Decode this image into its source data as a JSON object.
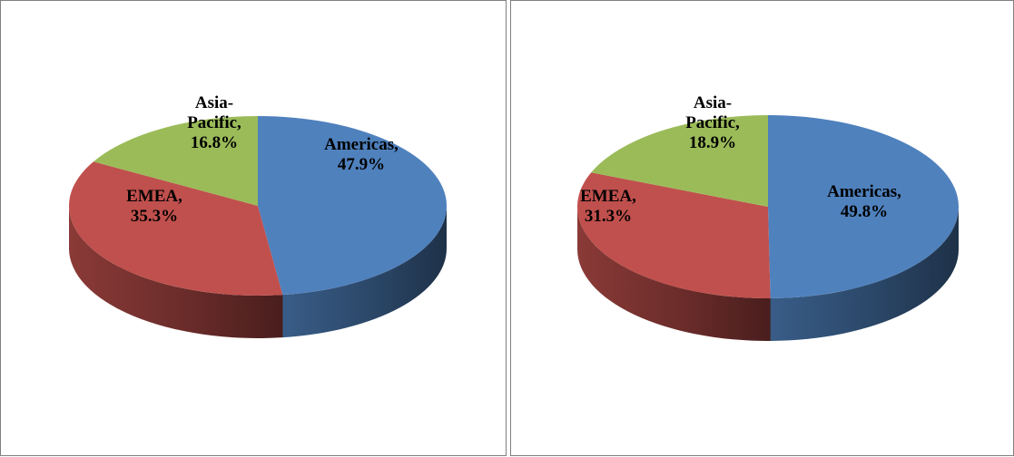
{
  "chart_data": [
    {
      "type": "pie",
      "style": "3d",
      "categories": [
        "Americas",
        "EMEA",
        "Asia-Pacific"
      ],
      "values": [
        47.9,
        35.3,
        16.8
      ],
      "labels": [
        [
          "Americas,",
          "47.9%"
        ],
        [
          "EMEA,",
          "35.3%"
        ],
        [
          "Asia-",
          "Pacific,",
          "16.8%"
        ]
      ],
      "colors": [
        "#4F81BD",
        "#C0504D",
        "#9BBB59"
      ],
      "title": "",
      "legend": "none"
    },
    {
      "type": "pie",
      "style": "3d",
      "categories": [
        "Americas",
        "EMEA",
        "Asia-Pacific"
      ],
      "values": [
        49.8,
        31.3,
        18.9
      ],
      "labels": [
        [
          "Americas,",
          "49.8%"
        ],
        [
          "EMEA,",
          "31.3%"
        ],
        [
          "Asia-",
          "Pacific,",
          "18.9%"
        ]
      ],
      "colors": [
        "#4F81BD",
        "#C0504D",
        "#9BBB59"
      ],
      "title": "",
      "legend": "none"
    }
  ]
}
